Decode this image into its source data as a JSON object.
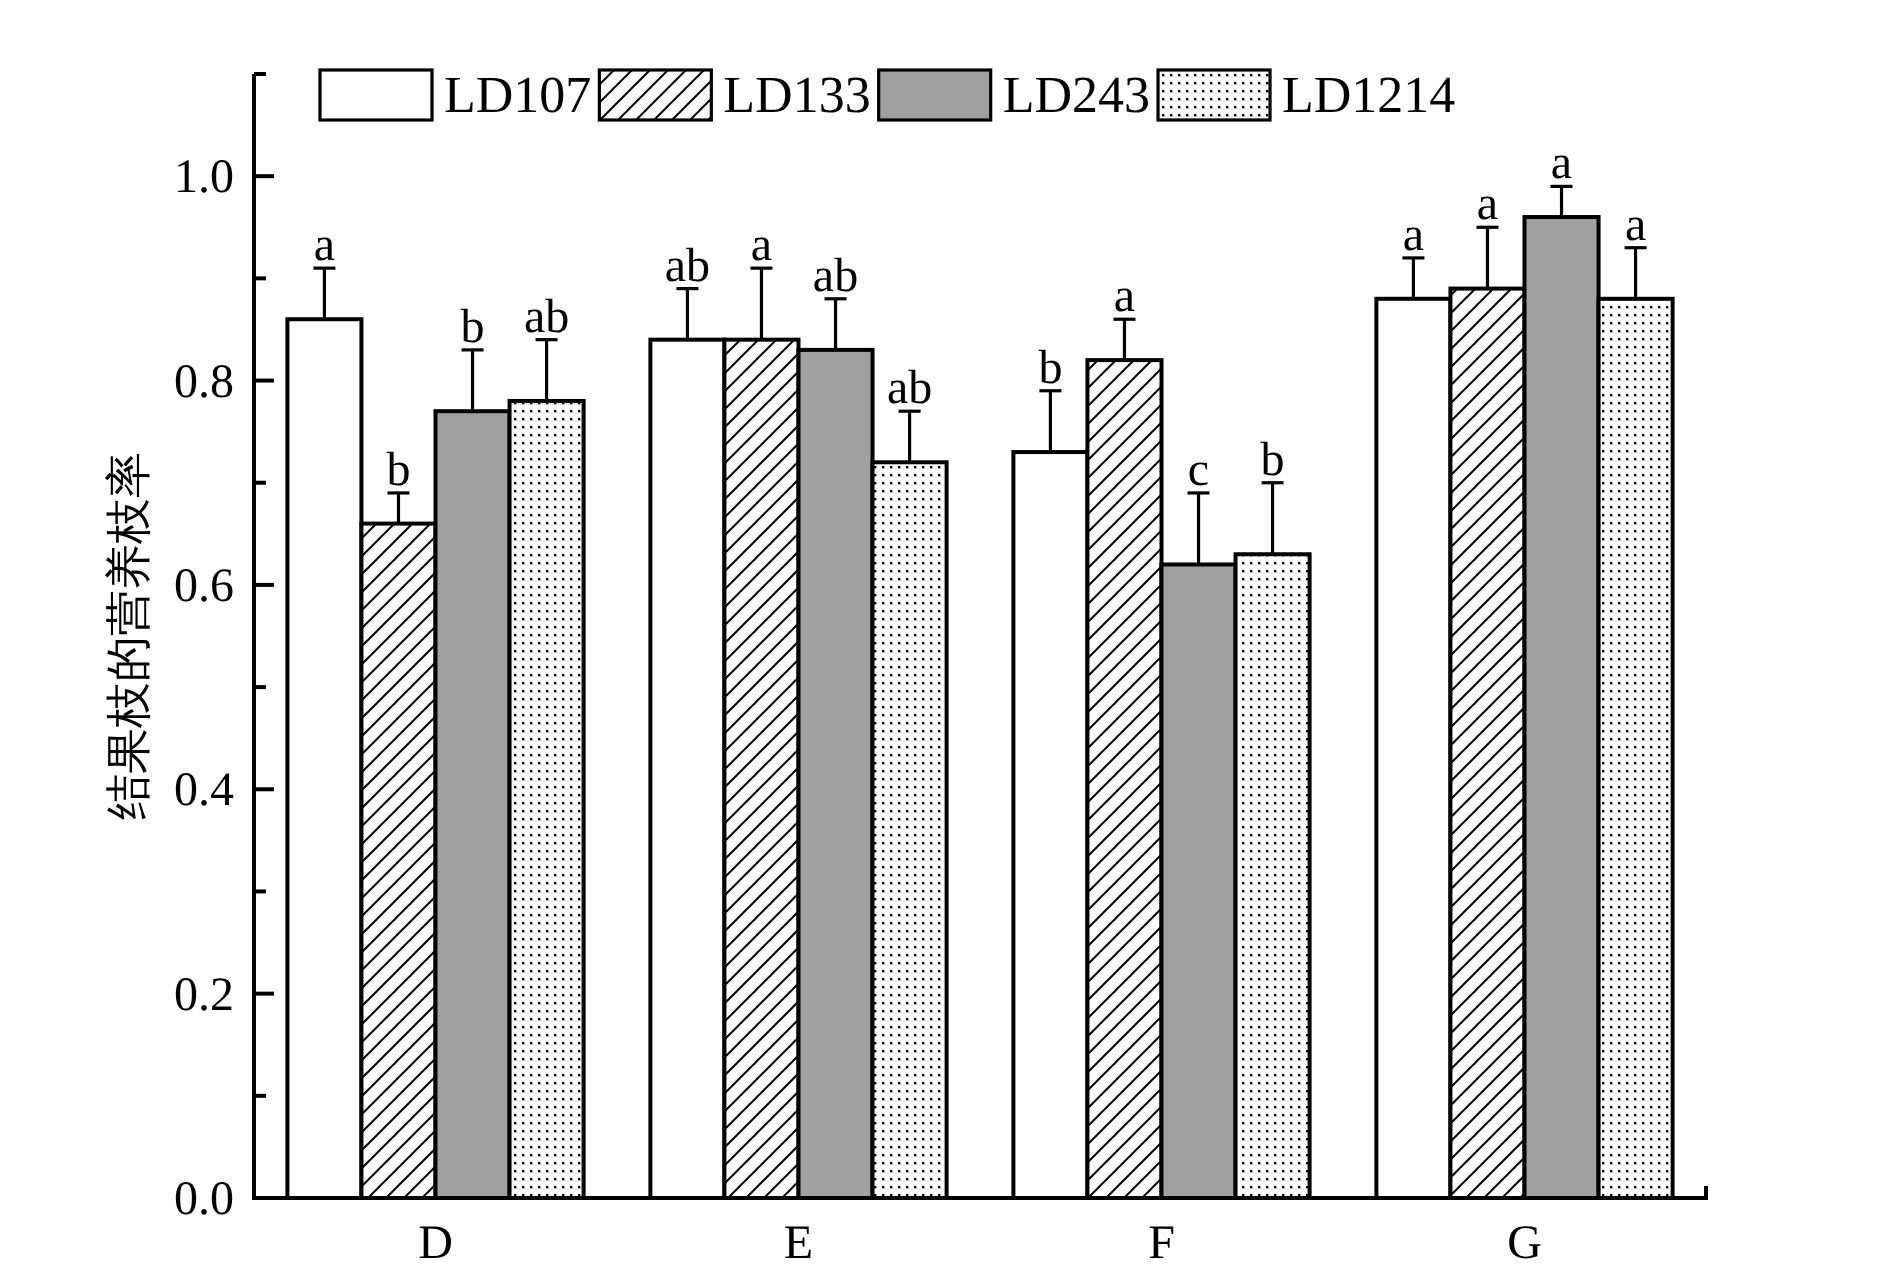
{
  "chart_data": {
    "type": "bar",
    "ylabel": "结果枝的营养枝率",
    "categories": [
      "D",
      "E",
      "F",
      "G"
    ],
    "series": [
      {
        "name": "LD107",
        "color": "#ffffff",
        "values": [
          0.86,
          0.84,
          0.73,
          0.88
        ],
        "errors": [
          0.05,
          0.05,
          0.06,
          0.04
        ],
        "value_labels": [
          "a",
          "ab",
          "b",
          "a"
        ]
      },
      {
        "name": "LD133",
        "color": "#000000",
        "values": [
          0.66,
          0.84,
          0.82,
          0.89
        ],
        "errors": [
          0.03,
          0.07,
          0.04,
          0.06
        ],
        "value_labels": [
          "b",
          "a",
          "a",
          "a"
        ]
      },
      {
        "name": "LD243",
        "color": "#a0a0a0",
        "values": [
          0.77,
          0.83,
          0.62,
          0.96
        ],
        "errors": [
          0.06,
          0.05,
          0.07,
          0.03
        ],
        "value_labels": [
          "b",
          "ab",
          "c",
          "a"
        ]
      },
      {
        "name": "LD1214",
        "color": "#000000",
        "values": [
          0.78,
          0.72,
          0.63,
          0.88
        ],
        "errors": [
          0.06,
          0.05,
          0.07,
          0.05
        ],
        "value_labels": [
          "ab",
          "ab",
          "b",
          "a"
        ]
      }
    ],
    "ylim": [
      0,
      1.1
    ],
    "yticks": [
      {
        "value": 0,
        "label": "0.0"
      },
      {
        "value": 0.1,
        "label": null
      },
      0.2,
      {
        "value": 0.3,
        "label": null
      },
      0.4,
      {
        "value": 0.5,
        "label": null
      },
      0.6,
      {
        "value": 0.7,
        "label": null
      },
      0.8,
      {
        "value": 0.9,
        "label": null
      },
      {
        "value": 1,
        "label": "1.0"
      },
      {
        "value": 1.1,
        "label": null
      }
    ],
    "legend": "top",
    "grid": false
  }
}
